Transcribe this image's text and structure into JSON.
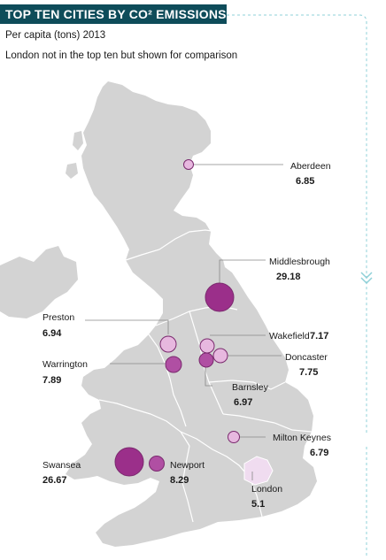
{
  "header": {
    "title": "TOP TEN CITIES BY CO² EMISSIONS",
    "subtitle": "Per capita (tons) 2013",
    "note": "London not in the top ten but shown for comparison"
  },
  "colors": {
    "title_bg": "#0e4c5a",
    "land": "#d3d3d3",
    "sea": "#ffffff",
    "border": "#ffffff",
    "bubble_large": "#9b2f8a",
    "bubble_mid": "#b04fa3",
    "bubble_small": "#e7b8df",
    "london_area": "#f0dcf0",
    "accent_dash": "#8fd0d8"
  },
  "cities": [
    {
      "name": "Aberdeen",
      "value": "6.85"
    },
    {
      "name": "Middlesbrough",
      "value": "29.18"
    },
    {
      "name": "Preston",
      "value": "6.94"
    },
    {
      "name": "Wakefield",
      "value": "7.17"
    },
    {
      "name": "Doncaster",
      "value": "7.75"
    },
    {
      "name": "Warrington",
      "value": "7.89"
    },
    {
      "name": "Barnsley",
      "value": "6.97"
    },
    {
      "name": "Milton Keynes",
      "value": "6.79"
    },
    {
      "name": "Swansea",
      "value": "26.67"
    },
    {
      "name": "Newport",
      "value": "8.29"
    },
    {
      "name": "London",
      "value": "5.1"
    }
  ],
  "icons": {
    "scroll_hint": "double-chevron-down-icon"
  }
}
